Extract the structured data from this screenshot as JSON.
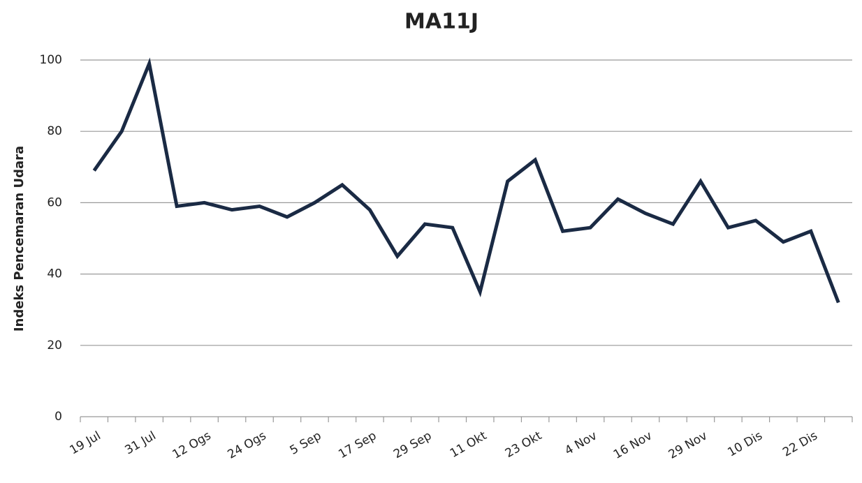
{
  "chart_data": {
    "type": "line",
    "title": "MA11J",
    "y_label": "Indeks Pencemaran Udara",
    "categories": [
      "19 Jul",
      null,
      "31 Jul",
      null,
      "12 Ogs",
      null,
      "24 Ogs",
      null,
      "5 Sep",
      null,
      "17 Sep",
      null,
      "29 Sep",
      null,
      "11 Okt",
      null,
      "23 Okt",
      null,
      "4 Nov",
      null,
      "16 Nov",
      null,
      "29 Nov",
      null,
      "10 Dis",
      null,
      "22 Dis",
      null
    ],
    "series": [
      {
        "name": "MA11J",
        "color": "#1a2a44",
        "values": [
          69,
          80,
          99,
          59,
          60,
          58,
          59,
          56,
          60,
          65,
          58,
          45,
          54,
          53,
          35,
          66,
          72,
          52,
          53,
          61,
          57,
          54,
          66,
          53,
          55,
          49,
          52,
          32
        ]
      }
    ],
    "ylim": [
      0,
      100
    ],
    "yticks": [
      0,
      20,
      40,
      60,
      80,
      100
    ],
    "grid": true
  }
}
